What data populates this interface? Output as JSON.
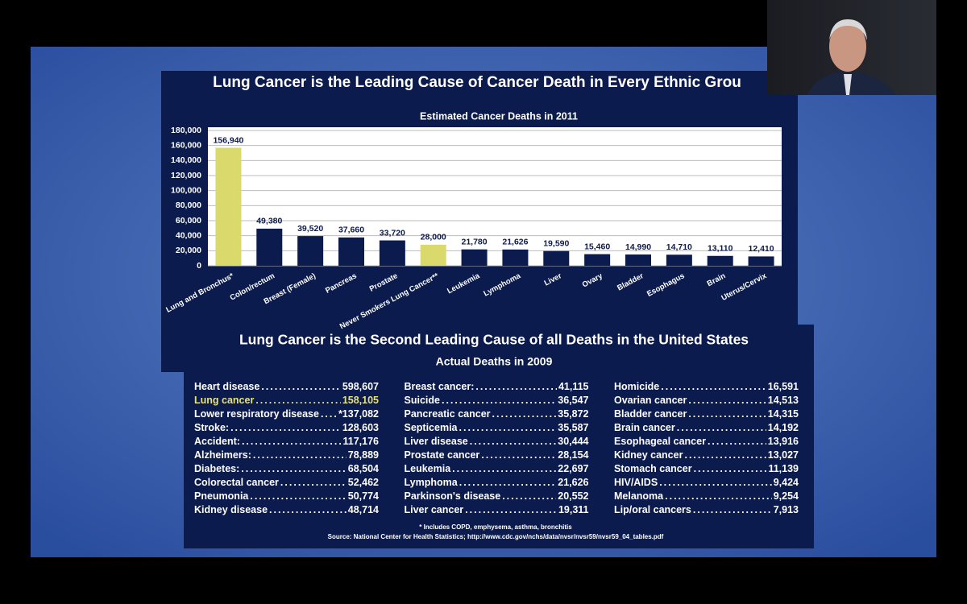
{
  "slide_title": "Lung Cancer is the Leading Cause of Cancer Death in Every Ethnic Grou",
  "chart_data": {
    "type": "bar",
    "title": "Estimated Cancer Deaths in 2011",
    "categories": [
      "Lung and Bronchus*",
      "Colon/rectum",
      "Breast (Female)",
      "Pancreas",
      "Prostate",
      "Never Smokers Lung Cancer**",
      "Leukemia",
      "Lymphoma",
      "Liver",
      "Ovary",
      "Bladder",
      "Esophagus",
      "Brain",
      "Uterus/Cervix"
    ],
    "values": [
      156940,
      49380,
      39520,
      37660,
      33720,
      28000,
      21780,
      21626,
      19590,
      15460,
      14990,
      14710,
      13110,
      12410
    ],
    "value_labels": [
      "156,940",
      "49,380",
      "39,520",
      "37,660",
      "33,720",
      "28,000",
      "21,780",
      "21,626",
      "19,590",
      "15,460",
      "14,990",
      "14,710",
      "13,110",
      "12,410"
    ],
    "colors": [
      "#d9d96c",
      "#0c1b4d",
      "#0c1b4d",
      "#0c1b4d",
      "#0c1b4d",
      "#d9d96c",
      "#0c1b4d",
      "#0c1b4d",
      "#0c1b4d",
      "#0c1b4d",
      "#0c1b4d",
      "#0c1b4d",
      "#0c1b4d",
      "#0c1b4d"
    ],
    "ylim": [
      0,
      180000
    ],
    "yticks": [
      0,
      {
        "value": 20000,
        "label": "20,000"
      },
      {
        "value": 40000,
        "label": "40,000"
      },
      {
        "value": 60000,
        "label": "60,000"
      },
      {
        "value": 80000,
        "label": "80,000"
      },
      {
        "value": 100000,
        "label": "100,000"
      },
      {
        "value": 120000,
        "label": "120,000"
      },
      {
        "value": 140000,
        "label": "140,000"
      },
      {
        "value": 160000,
        "label": "160,000"
      },
      {
        "value": 180000,
        "label": "180,000"
      }
    ],
    "grid": true
  },
  "deaths_2009": {
    "title": "Lung Cancer is the Second Leading Cause of all Deaths in the United States",
    "subtitle": "Actual Deaths in 2009",
    "columns": [
      [
        {
          "cause": "Heart disease",
          "deaths": "598,607"
        },
        {
          "cause": "Lung cancer",
          "deaths": "158,105"
        },
        {
          "cause": "Lower respiratory disease",
          "deaths": "*137,082"
        },
        {
          "cause": "Stroke:",
          "deaths": "128,603"
        },
        {
          "cause": "Accident:",
          "deaths": "117,176"
        },
        {
          "cause": "Alzheimers:",
          "deaths": "78,889"
        },
        {
          "cause": "Diabetes:",
          "deaths": "68,504"
        },
        {
          "cause": "Colorectal cancer",
          "deaths": "52,462"
        },
        {
          "cause": "Pneumonia",
          "deaths": "50,774"
        },
        {
          "cause": "Kidney disease",
          "deaths": "48,714"
        }
      ],
      [
        {
          "cause": "Breast cancer:",
          "deaths": "41,115"
        },
        {
          "cause": "Suicide",
          "deaths": "36,547"
        },
        {
          "cause": "Pancreatic cancer",
          "deaths": "35,872"
        },
        {
          "cause": "Septicemia",
          "deaths": "35,587"
        },
        {
          "cause": "Liver disease",
          "deaths": "30,444"
        },
        {
          "cause": "Prostate cancer",
          "deaths": "28,154"
        },
        {
          "cause": "Leukemia",
          "deaths": "22,697"
        },
        {
          "cause": "Lymphoma",
          "deaths": "21,626"
        },
        {
          "cause": "Parkinson's disease",
          "deaths": "20,552"
        },
        {
          "cause": "Liver cancer",
          "deaths": "19,311"
        }
      ],
      [
        {
          "cause": "Homicide",
          "deaths": "16,591"
        },
        {
          "cause": "Ovarian cancer",
          "deaths": "14,513"
        },
        {
          "cause": "Bladder cancer",
          "deaths": "14,315"
        },
        {
          "cause": "Brain cancer",
          "deaths": "14,192"
        },
        {
          "cause": "Esophageal cancer",
          "deaths": "13,916"
        },
        {
          "cause": "Kidney cancer",
          "deaths": "13,027"
        },
        {
          "cause": "Stomach cancer",
          "deaths": "11,139"
        },
        {
          "cause": "HIV/AIDS",
          "deaths": "9,424"
        },
        {
          "cause": "Melanoma",
          "deaths": "9,254"
        },
        {
          "cause": "Lip/oral cancers",
          "deaths": "7,913"
        }
      ]
    ],
    "highlight": {
      "column": 0,
      "row": 1,
      "color": "#e6e27a"
    },
    "footnote": "* Includes COPD, emphysema, asthma, bronchitis",
    "source": "Source: National Center for Health Statistics; http://www.cdc.gov/nchs/data/nvsr/nvsr59/nvsr59_04_tables.pdf"
  }
}
